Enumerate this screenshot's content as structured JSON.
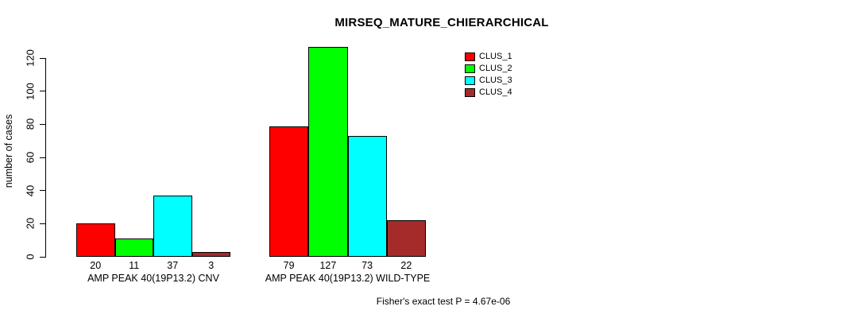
{
  "chart_data": {
    "type": "bar",
    "title": "MIRSEQ_MATURE_CHIERARCHICAL",
    "xlabel": "",
    "ylabel": "number of cases",
    "ylim": [
      0,
      120
    ],
    "yticks": [
      0,
      20,
      40,
      60,
      80,
      100,
      120
    ],
    "grid": false,
    "legend_position": "top-right-inside",
    "y_tick_labels_rotated": true,
    "show_bar_values": true,
    "categories": [
      "AMP PEAK 40(19P13.2) CNV",
      "AMP PEAK 40(19P13.2) WILD-TYPE"
    ],
    "series": [
      {
        "name": "CLUS_1",
        "color": "#FF0000",
        "values": [
          20,
          79
        ]
      },
      {
        "name": "CLUS_2",
        "color": "#00FF00",
        "values": [
          11,
          127
        ]
      },
      {
        "name": "CLUS_3",
        "color": "#00FFFF",
        "values": [
          37,
          73
        ]
      },
      {
        "name": "CLUS_4",
        "color": "#A52A2A",
        "values": [
          3,
          22
        ]
      }
    ],
    "annotation": "Fisher's exact test P = 4.67e-06"
  },
  "colors": {
    "background": "#FFFFFF",
    "axis": "#000000",
    "text": "#000000"
  }
}
